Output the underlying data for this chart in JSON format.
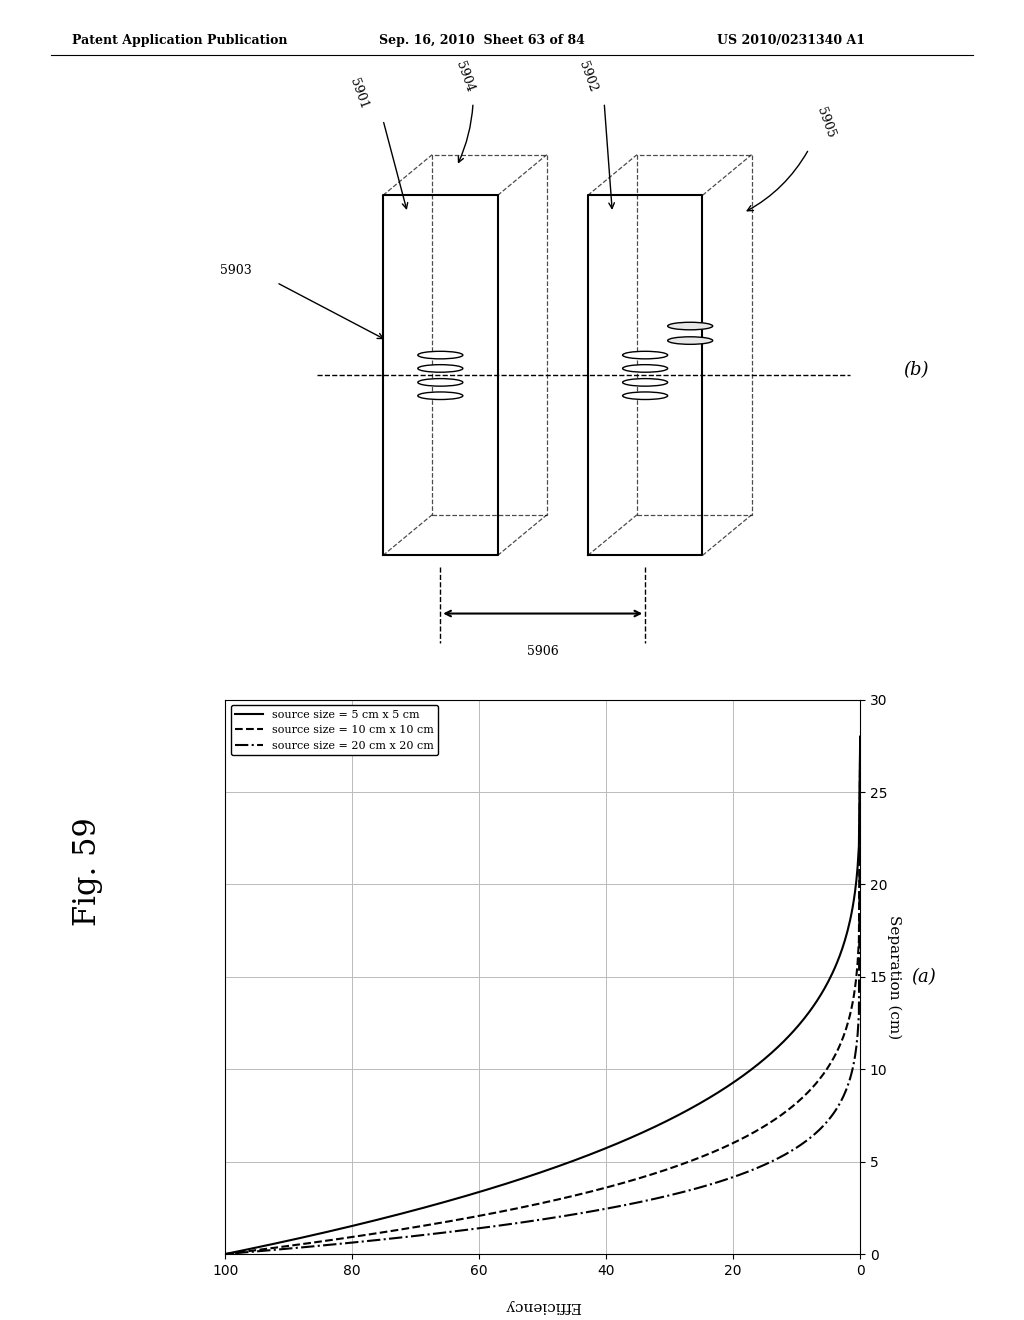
{
  "header_left": "Patent Application Publication",
  "header_mid": "Sep. 16, 2010  Sheet 63 of 84",
  "header_right": "US 2010/0231340 A1",
  "fig_label": "Fig. 59",
  "subplot_b_label": "(b)",
  "subplot_a_label": "(a)",
  "labels_b": [
    "5901",
    "5902",
    "5903",
    "5904",
    "5905",
    "5906"
  ],
  "legend_entries": [
    "source size = 5 cm x 5 cm",
    "source size = 10 cm x 10 cm",
    "source size = 20 cm x 20 cm"
  ],
  "legend_styles": [
    "solid",
    "dashed",
    "dashdot"
  ],
  "x_label": "Separation (cm)",
  "y_label": "Efficiency",
  "background_color": "#ffffff",
  "line_color": "#000000",
  "grid_color": "#bbbbbb"
}
